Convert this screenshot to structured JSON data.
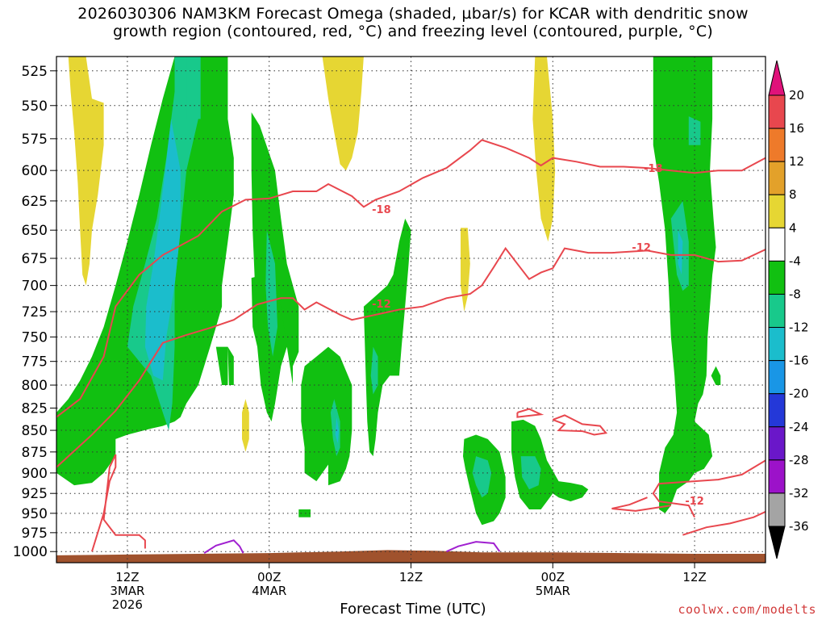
{
  "title": "2026030306 NAM3KM Forecast Omega (shaded, µbar/s) for KCAR with dendritic snow\ngrowth region (contoured, red, °C) and freezing level (contoured, purple, °C)",
  "credit": "coolwx.com/modelts",
  "chart_data": {
    "type": "heatmap",
    "title": "2026030306 NAM3KM Forecast Omega (shaded, µbar/s) for KCAR with dendritic snow growth region (contoured, red, °C) and freezing level (contoured, purple, °C)",
    "xlabel": "Forecast Time (UTC)",
    "ylabel": "",
    "x_ticks": [
      {
        "hour": 6,
        "label": "12Z\n3MAR\n2026"
      },
      {
        "hour": 18,
        "label": "00Z\n4MAR"
      },
      {
        "hour": 30,
        "label": "12Z"
      },
      {
        "hour": 42,
        "label": "00Z\n5MAR"
      },
      {
        "hour": 54,
        "label": "12Z"
      }
    ],
    "xlim": [
      0,
      60
    ],
    "y_ticks": [
      525,
      550,
      575,
      600,
      625,
      650,
      675,
      700,
      725,
      750,
      775,
      800,
      825,
      850,
      875,
      900,
      925,
      950,
      975,
      1000
    ],
    "ylim": [
      1015,
      515
    ],
    "y_scale": "log-pressure",
    "colorbar": {
      "labels": [
        "20",
        "16",
        "12",
        "8",
        "4",
        "-4",
        "-8",
        "-12",
        "-16",
        "-20",
        "-24",
        "-28",
        "-32",
        "-36"
      ],
      "levels": [
        {
          "range": [
            16,
            20
          ],
          "color": "#e8474e"
        },
        {
          "range": [
            12,
            16
          ],
          "color": "#ee7a2a"
        },
        {
          "range": [
            8,
            12
          ],
          "color": "#e3a12a"
        },
        {
          "range": [
            4,
            8
          ],
          "color": "#e6d633"
        },
        {
          "range": [
            -4,
            4
          ],
          "color": "#ffffff"
        },
        {
          "range": [
            -8,
            -4
          ],
          "color": "#11c011"
        },
        {
          "range": [
            -12,
            -8
          ],
          "color": "#18c98b"
        },
        {
          "range": [
            -16,
            -12
          ],
          "color": "#1bbdcc"
        },
        {
          "range": [
            -20,
            -16
          ],
          "color": "#1996e6"
        },
        {
          "range": [
            -24,
            -20
          ],
          "color": "#2438d8"
        },
        {
          "range": [
            -28,
            -24
          ],
          "color": "#6a17c9"
        },
        {
          "range": [
            -32,
            -28
          ],
          "color": "#9c12c9"
        },
        {
          "range": [
            -36,
            -32
          ],
          "color": "#a4a4a4"
        }
      ],
      "over_color": "#e0127a",
      "under_color": "#000000"
    },
    "contour_labels": [
      {
        "text": "-18",
        "hour": 27.5,
        "p": 632
      },
      {
        "text": "-18",
        "hour": 50.5,
        "p": 598
      },
      {
        "text": "-12",
        "hour": 27.5,
        "p": 717
      },
      {
        "text": "-12",
        "hour": 49.5,
        "p": 665
      },
      {
        "text": "-12",
        "hour": 54,
        "p": 934
      }
    ],
    "series": [
      {
        "name": "-18",
        "color": "#e8474e",
        "points": [
          [
            0,
            835
          ],
          [
            2,
            815
          ],
          [
            4,
            770
          ],
          [
            5,
            720
          ],
          [
            7,
            690
          ],
          [
            9,
            672
          ],
          [
            12,
            655
          ],
          [
            14,
            634
          ],
          [
            16,
            624
          ],
          [
            18,
            623
          ],
          [
            20,
            617
          ],
          [
            22,
            617
          ],
          [
            23,
            611
          ],
          [
            25,
            621
          ],
          [
            26,
            630
          ],
          [
            27,
            624
          ],
          [
            29,
            617
          ],
          [
            31,
            606
          ],
          [
            33,
            598
          ],
          [
            35,
            584
          ],
          [
            36,
            576
          ],
          [
            38,
            582
          ],
          [
            40,
            590
          ],
          [
            41,
            596
          ],
          [
            42,
            590
          ],
          [
            44,
            593
          ],
          [
            46,
            597
          ],
          [
            48,
            597
          ],
          [
            50,
            598
          ],
          [
            52,
            600
          ],
          [
            54,
            602
          ],
          [
            56,
            600
          ],
          [
            58,
            600
          ],
          [
            60,
            590
          ]
        ]
      },
      {
        "name": "-12",
        "color": "#e8474e",
        "points": [
          [
            0,
            893
          ],
          [
            3,
            855
          ],
          [
            5,
            828
          ],
          [
            7,
            795
          ],
          [
            9,
            756
          ],
          [
            11,
            748
          ],
          [
            13,
            741
          ],
          [
            15,
            733
          ],
          [
            17,
            718
          ],
          [
            19,
            712
          ],
          [
            20,
            712
          ],
          [
            21,
            723
          ],
          [
            22,
            716
          ],
          [
            24,
            728
          ],
          [
            25,
            733
          ],
          [
            27,
            728
          ],
          [
            29,
            723
          ],
          [
            31,
            720
          ],
          [
            33,
            712
          ],
          [
            35,
            708
          ],
          [
            36,
            700
          ],
          [
            37,
            683
          ],
          [
            38,
            666
          ],
          [
            39,
            680
          ],
          [
            40,
            694
          ],
          [
            41,
            688
          ],
          [
            42,
            684
          ],
          [
            43,
            666
          ],
          [
            45,
            670
          ],
          [
            47,
            670
          ],
          [
            50,
            668
          ],
          [
            52,
            672
          ],
          [
            54,
            672
          ],
          [
            56,
            678
          ],
          [
            58,
            677
          ],
          [
            60,
            667
          ]
        ]
      },
      {
        "name": "-12",
        "color": "#e8474e",
        "points": [
          [
            3,
            1000
          ],
          [
            4,
            950
          ],
          [
            4.5,
            910
          ],
          [
            5,
            893
          ],
          [
            5,
            878
          ],
          [
            4.5,
            893
          ],
          [
            4,
            958
          ],
          [
            5,
            978
          ],
          [
            7,
            978
          ],
          [
            7.5,
            985
          ],
          [
            7.5,
            996
          ]
        ]
      },
      {
        "name": "-12",
        "color": "#e8474e",
        "points": [
          [
            54,
            955
          ],
          [
            53.5,
            940
          ],
          [
            51,
            935
          ],
          [
            50.5,
            925
          ],
          [
            51,
            913
          ],
          [
            54,
            910
          ],
          [
            56,
            908
          ],
          [
            58,
            902
          ],
          [
            60,
            885
          ]
        ]
      },
      {
        "name": "-12",
        "color": "#e8474e",
        "points": [
          [
            52,
            940
          ],
          [
            49,
            947
          ],
          [
            47,
            944
          ],
          [
            48.5,
            939
          ],
          [
            50,
            930
          ]
        ]
      },
      {
        "name": "-12",
        "color": "#e8474e",
        "points": [
          [
            53,
            978
          ],
          [
            55,
            968
          ],
          [
            57,
            963
          ],
          [
            59,
            955
          ],
          [
            60,
            948
          ]
        ]
      },
      {
        "name": "-12",
        "color": "#e8474e",
        "points": [
          [
            42,
            838
          ],
          [
            43,
            843
          ],
          [
            42.5,
            850
          ],
          [
            44.5,
            851
          ],
          [
            45.5,
            855
          ],
          [
            46.5,
            853
          ],
          [
            46,
            845
          ],
          [
            44.5,
            843
          ],
          [
            43,
            833
          ],
          [
            42,
            838
          ]
        ]
      },
      {
        "name": "-12",
        "color": "#e8474e",
        "points": [
          [
            39,
            830
          ],
          [
            40,
            826
          ],
          [
            41,
            832
          ],
          [
            39,
            835
          ],
          [
            39,
            830
          ]
        ]
      },
      {
        "name": "0",
        "color": "#a020d0",
        "points": [
          [
            12.5,
            1002
          ],
          [
            13.5,
            992
          ],
          [
            15,
            985
          ],
          [
            15.5,
            993
          ],
          [
            15.8,
            1002
          ]
        ]
      },
      {
        "name": "0",
        "color": "#a020d0",
        "points": [
          [
            33,
            1000
          ],
          [
            34,
            993
          ],
          [
            35.5,
            987
          ],
          [
            37,
            989
          ],
          [
            37.5,
            1000
          ]
        ]
      }
    ]
  }
}
